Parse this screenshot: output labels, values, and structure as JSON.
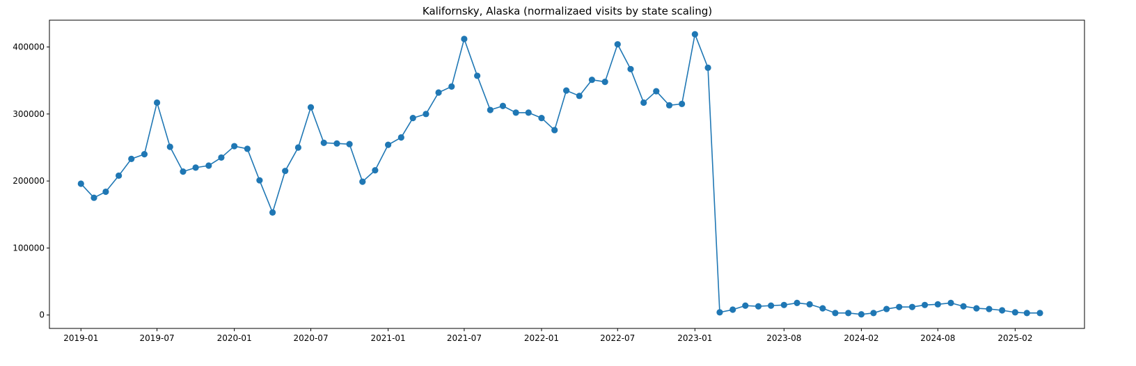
{
  "chart_data": {
    "type": "line",
    "title": "Kalifornsky, Alaska (normalizaed visits by state scaling)",
    "xlabel": "",
    "ylabel": "",
    "grid": false,
    "legend": "none",
    "series_color": "#1f77b4",
    "marker": "circle",
    "x_range": [
      "2018-10-18",
      "2025-07-16"
    ],
    "ylim": [
      -20000,
      440000
    ],
    "x_ticks": [
      "2019-01",
      "2019-07",
      "2020-01",
      "2020-07",
      "2021-01",
      "2021-07",
      "2022-01",
      "2022-07",
      "2023-01",
      "2023-08",
      "2024-02",
      "2024-08",
      "2025-02"
    ],
    "y_ticks": [
      0,
      100000,
      200000,
      300000,
      400000
    ],
    "series": [
      {
        "x": [
          "2019-01-01",
          "2019-02-01",
          "2019-03-01",
          "2019-04-01",
          "2019-05-01",
          "2019-06-01",
          "2019-07-01",
          "2019-08-01",
          "2019-09-01",
          "2019-10-01",
          "2019-11-01",
          "2019-12-01",
          "2020-01-01",
          "2020-02-01",
          "2020-03-01",
          "2020-04-01",
          "2020-05-01",
          "2020-06-01",
          "2020-07-01",
          "2020-08-01",
          "2020-09-01",
          "2020-10-01",
          "2020-11-01",
          "2020-12-01",
          "2021-01-01",
          "2021-02-01",
          "2021-03-01",
          "2021-04-01",
          "2021-05-01",
          "2021-06-01",
          "2021-07-01",
          "2021-08-01",
          "2021-09-01",
          "2021-10-01",
          "2021-11-01",
          "2021-12-01",
          "2022-01-01",
          "2022-02-01",
          "2022-03-01",
          "2022-04-01",
          "2022-05-01",
          "2022-06-01",
          "2022-07-01",
          "2022-08-01",
          "2022-09-01",
          "2022-10-01",
          "2022-11-01",
          "2022-12-01",
          "2023-01-01",
          "2023-02-01",
          "2023-03-01",
          "2023-04-01",
          "2023-05-01",
          "2023-06-01",
          "2023-07-01",
          "2023-08-01",
          "2023-09-01",
          "2023-10-01",
          "2023-11-01",
          "2023-12-01",
          "2024-01-01",
          "2024-02-01",
          "2024-03-01",
          "2024-04-01",
          "2024-05-01",
          "2024-06-01",
          "2024-07-01",
          "2024-08-01",
          "2024-09-01",
          "2024-10-01",
          "2024-11-01",
          "2024-12-01",
          "2025-01-01",
          "2025-02-01",
          "2025-03-01",
          "2025-04-01"
        ],
        "y": [
          196000,
          175000,
          184000,
          208000,
          233000,
          240000,
          317000,
          251000,
          214000,
          220000,
          223000,
          235000,
          252000,
          248000,
          201000,
          153000,
          215000,
          250000,
          310000,
          257000,
          256000,
          255000,
          199000,
          216000,
          254000,
          265000,
          294000,
          300000,
          332000,
          341000,
          412000,
          357000,
          306000,
          312000,
          302000,
          302000,
          294000,
          276000,
          335000,
          327000,
          351000,
          348000,
          404000,
          367000,
          317000,
          334000,
          313000,
          315000,
          419000,
          369000,
          4000,
          8000,
          14000,
          13000,
          14000,
          15000,
          18000,
          16000,
          10000,
          3000,
          3000,
          1000,
          3000,
          9000,
          12000,
          12000,
          15000,
          16000,
          18000,
          13000,
          10000,
          9000,
          7000,
          4000,
          3000,
          3000
        ]
      }
    ]
  }
}
